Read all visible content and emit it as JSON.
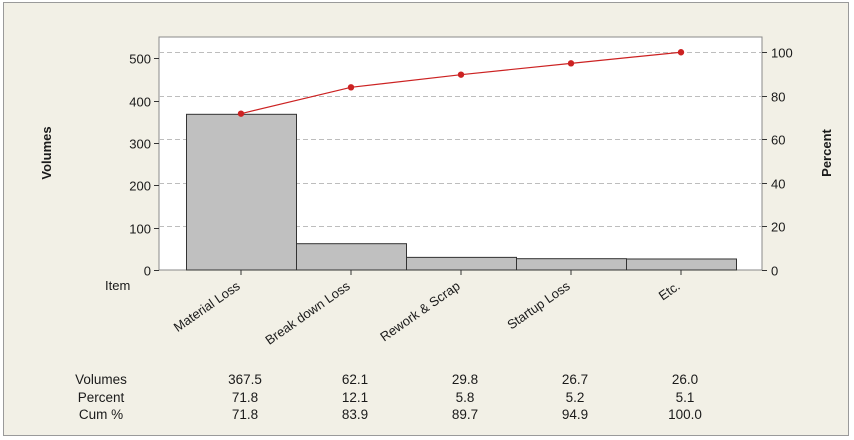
{
  "chart_data": {
    "type": "bar",
    "item_label": "Item",
    "categories": [
      "Material Loss",
      "Break down Loss",
      "Rework & Scrap",
      "Startup Loss",
      "Etc."
    ],
    "series": [
      {
        "name": "Volumes",
        "values": [
          367.5,
          62.1,
          29.8,
          26.7,
          26.0
        ]
      },
      {
        "name": "Cum %",
        "values": [
          71.8,
          83.9,
          89.7,
          94.9,
          100.0
        ]
      }
    ],
    "ylabel": "Volumes",
    "ylabel_right": "Percent",
    "ylim": [
      0,
      550
    ],
    "ylim_right": [
      0,
      107
    ],
    "yticks": [
      0,
      100,
      200,
      300,
      400,
      500
    ],
    "yticks_right": [
      0,
      20,
      40,
      60,
      80,
      100
    ],
    "grid": true,
    "colors": {
      "bars": "#c0c0c0",
      "bar_edge": "#333333",
      "line": "#cc2222",
      "background": "#f2f0e6",
      "plot_area": "#ffffff",
      "grid": "#bdbdbd"
    },
    "table": {
      "rows": [
        {
          "label": "Volumes",
          "values": [
            "367.5",
            "62.1",
            "29.8",
            "26.7",
            "26.0"
          ]
        },
        {
          "label": "Percent",
          "values": [
            "71.8",
            "12.1",
            "5.8",
            "5.2",
            "5.1"
          ]
        },
        {
          "label": "Cum %",
          "values": [
            "71.8",
            "83.9",
            "89.7",
            "94.9",
            "100.0"
          ]
        }
      ]
    }
  }
}
